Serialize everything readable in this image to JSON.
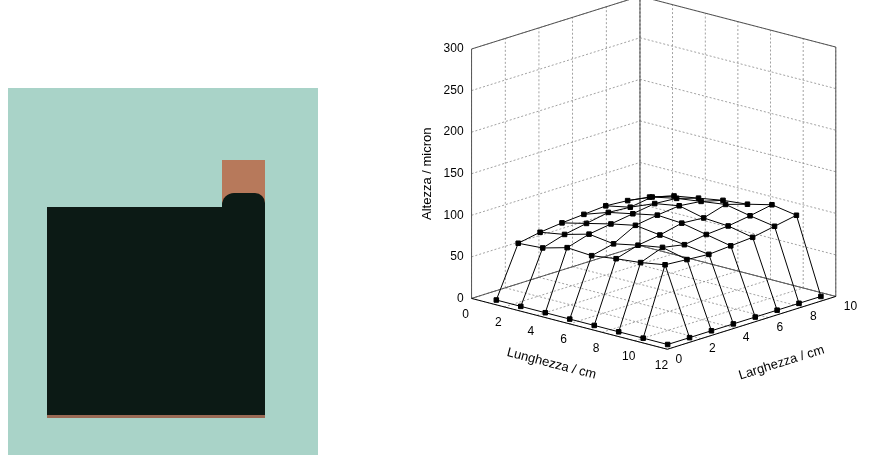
{
  "chart_data": {
    "type": "wireframe",
    "xlabel": "Lunghezza / cm",
    "ylabel": "Larghezza / cm",
    "zlabel": "Altezza / micron",
    "x": [
      1,
      2.5,
      4,
      5.5,
      7,
      8.5,
      10,
      11.5
    ],
    "y": [
      0.5,
      1.8,
      3.1,
      4.4,
      5.7,
      7,
      8.3,
      9.6
    ],
    "values": [
      [
        0,
        0,
        0,
        0,
        0,
        0,
        0,
        0
      ],
      [
        60,
        62,
        70,
        68,
        72,
        75,
        80,
        0
      ],
      [
        65,
        70,
        78,
        74,
        80,
        85,
        78,
        0
      ],
      [
        68,
        75,
        82,
        88,
        84,
        80,
        76,
        0
      ],
      [
        70,
        80,
        86,
        92,
        90,
        84,
        78,
        0
      ],
      [
        72,
        78,
        90,
        95,
        88,
        86,
        80,
        0
      ],
      [
        70,
        82,
        88,
        92,
        96,
        90,
        85,
        0
      ],
      [
        66,
        75,
        80,
        85,
        88,
        95,
        90,
        0
      ]
    ],
    "xlim": [
      0,
      12
    ],
    "xticks": [
      0,
      2,
      4,
      6,
      8,
      10,
      12
    ],
    "ylim": [
      0,
      10
    ],
    "yticks": [
      0,
      2,
      4,
      6,
      8,
      10
    ],
    "zlim": [
      0,
      300
    ],
    "zticks": [
      0,
      50,
      100,
      150,
      200,
      250,
      300
    ],
    "grid": true,
    "color": "#000000",
    "marker": "square",
    "line_style": "solid"
  }
}
